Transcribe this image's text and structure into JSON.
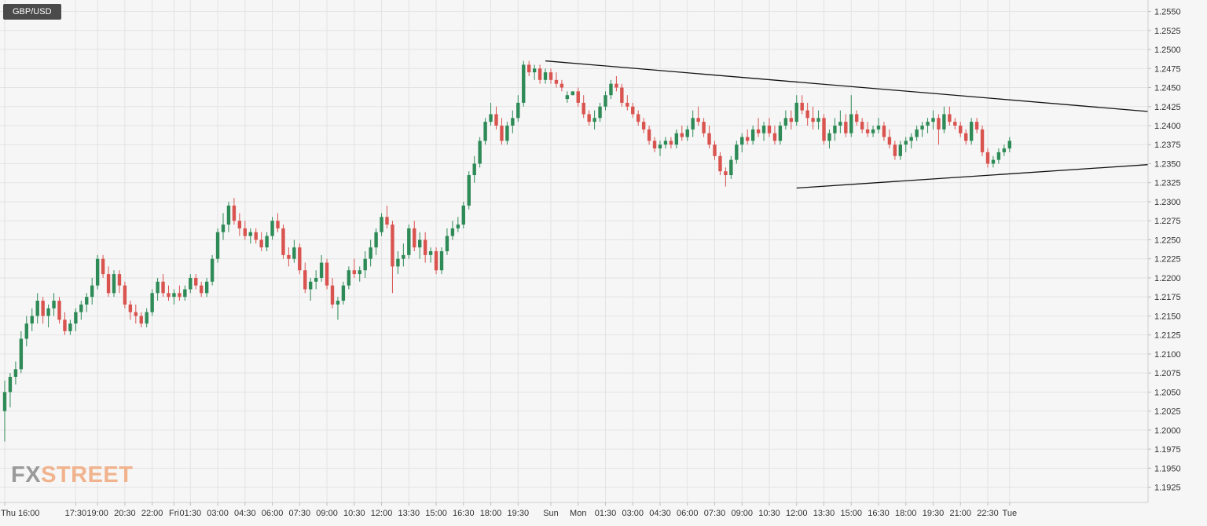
{
  "symbol": "GBP/USD",
  "logo": {
    "fx": "FX",
    "street": "STREET"
  },
  "colors": {
    "up": "#2e8b57",
    "down": "#d9534f",
    "grid": "#e3e3e3",
    "text": "#333333",
    "trendline": "#111111"
  },
  "chart_data": {
    "type": "candlestick",
    "title": "GBP/USD",
    "ylim": [
      1.1905,
      1.2565
    ],
    "grid": true,
    "y_ticks": [
      "1.2550",
      "1.2525",
      "1.2500",
      "1.2475",
      "1.2450",
      "1.2425",
      "1.2400",
      "1.2375",
      "1.2350",
      "1.2325",
      "1.2300",
      "1.2275",
      "1.2250",
      "1.2225",
      "1.2200",
      "1.2175",
      "1.2150",
      "1.2125",
      "1.2100",
      "1.2075",
      "1.2050",
      "1.2025",
      "1.2000",
      "1.1975",
      "1.1950",
      "1.1925"
    ],
    "x_ticks": [
      "Thu 16:00",
      "17:30",
      "19:00",
      "20:30",
      "22:00",
      "Fri",
      "01:30",
      "03:00",
      "04:30",
      "06:00",
      "07:30",
      "09:00",
      "10:30",
      "12:00",
      "13:30",
      "15:00",
      "16:30",
      "18:00",
      "19:30",
      "Sun",
      "Mon",
      "01:30",
      "03:00",
      "04:30",
      "06:00",
      "07:30",
      "09:00",
      "10:30",
      "12:00",
      "13:30",
      "15:00",
      "16:30",
      "18:00",
      "19:30",
      "21:00",
      "22:30",
      "Tue"
    ],
    "candles": [
      [
        "Thu 16:00",
        1.2025,
        1.2065,
        1.1985,
        1.205
      ],
      [
        "",
        1.205,
        1.2075,
        1.203,
        1.207
      ],
      [
        "",
        1.207,
        1.209,
        1.206,
        1.208
      ],
      [
        "",
        1.208,
        1.213,
        1.2075,
        1.212
      ],
      [
        "",
        1.212,
        1.215,
        1.211,
        1.214
      ],
      [
        "",
        1.214,
        1.216,
        1.213,
        1.215
      ],
      [
        "",
        1.215,
        1.218,
        1.214,
        1.217
      ],
      [
        "",
        1.217,
        1.2175,
        1.214,
        1.215
      ],
      [
        "",
        1.215,
        1.2165,
        1.2135,
        1.216
      ],
      [
        "",
        1.216,
        1.218,
        1.215,
        1.217
      ],
      [
        "",
        1.217,
        1.2175,
        1.214,
        1.2145
      ],
      [
        "",
        1.2145,
        1.2155,
        1.2125,
        1.213
      ],
      [
        "",
        1.213,
        1.2145,
        1.2125,
        1.214
      ],
      [
        "17:30",
        1.214,
        1.216,
        1.213,
        1.2155
      ],
      [
        "",
        1.2155,
        1.217,
        1.2145,
        1.2165
      ],
      [
        "",
        1.2165,
        1.218,
        1.2155,
        1.2175
      ],
      [
        "",
        1.2175,
        1.22,
        1.2165,
        1.219
      ],
      [
        "19:00",
        1.219,
        1.223,
        1.2185,
        1.2225
      ],
      [
        "",
        1.2225,
        1.223,
        1.22,
        1.2205
      ],
      [
        "",
        1.2205,
        1.2215,
        1.2175,
        1.218
      ],
      [
        "",
        1.218,
        1.221,
        1.2175,
        1.2205
      ],
      [
        "",
        1.2205,
        1.221,
        1.218,
        1.219
      ],
      [
        "20:30",
        1.219,
        1.2195,
        1.216,
        1.2165
      ],
      [
        "",
        1.2165,
        1.217,
        1.2145,
        1.2155
      ],
      [
        "",
        1.2155,
        1.2165,
        1.214,
        1.215
      ],
      [
        "",
        1.215,
        1.2155,
        1.2135,
        1.214
      ],
      [
        "",
        1.214,
        1.216,
        1.2135,
        1.2155
      ],
      [
        "22:00",
        1.2155,
        1.2185,
        1.215,
        1.218
      ],
      [
        "",
        1.218,
        1.22,
        1.217,
        1.2195
      ],
      [
        "",
        1.2195,
        1.2205,
        1.2175,
        1.218
      ],
      [
        "",
        1.218,
        1.219,
        1.217,
        1.2175
      ],
      [
        "Fri",
        1.2175,
        1.2185,
        1.2165,
        1.218
      ],
      [
        "",
        1.218,
        1.219,
        1.217,
        1.2175
      ],
      [
        "",
        1.2175,
        1.219,
        1.217,
        1.2185
      ],
      [
        "01:30",
        1.2185,
        1.2205,
        1.218,
        1.22
      ],
      [
        "",
        1.22,
        1.2205,
        1.2185,
        1.219
      ],
      [
        "",
        1.219,
        1.2195,
        1.2175,
        1.218
      ],
      [
        "",
        1.218,
        1.22,
        1.2175,
        1.2195
      ],
      [
        "",
        1.2195,
        1.223,
        1.219,
        1.2225
      ],
      [
        "03:00",
        1.2225,
        1.2265,
        1.222,
        1.226
      ],
      [
        "",
        1.226,
        1.2285,
        1.225,
        1.227
      ],
      [
        "",
        1.227,
        1.23,
        1.226,
        1.2295
      ],
      [
        "",
        1.2295,
        1.2305,
        1.227,
        1.2275
      ],
      [
        "",
        1.2275,
        1.2285,
        1.2255,
        1.2265
      ],
      [
        "04:30",
        1.2265,
        1.2275,
        1.225,
        1.2255
      ],
      [
        "",
        1.2255,
        1.2265,
        1.2245,
        1.226
      ],
      [
        "",
        1.226,
        1.2265,
        1.2245,
        1.225
      ],
      [
        "",
        1.225,
        1.226,
        1.2235,
        1.224
      ],
      [
        "",
        1.224,
        1.226,
        1.2235,
        1.2255
      ],
      [
        "06:00",
        1.2255,
        1.228,
        1.225,
        1.2275
      ],
      [
        "",
        1.2275,
        1.2285,
        1.226,
        1.2265
      ],
      [
        "",
        1.2265,
        1.227,
        1.2225,
        1.223
      ],
      [
        "",
        1.223,
        1.224,
        1.2215,
        1.2225
      ],
      [
        "",
        1.2225,
        1.225,
        1.222,
        1.224
      ],
      [
        "07:30",
        1.224,
        1.2245,
        1.2205,
        1.221
      ],
      [
        "",
        1.221,
        1.222,
        1.218,
        1.2185
      ],
      [
        "",
        1.2185,
        1.22,
        1.217,
        1.2195
      ],
      [
        "",
        1.2195,
        1.221,
        1.2185,
        1.22
      ],
      [
        "",
        1.22,
        1.223,
        1.2195,
        1.222
      ],
      [
        "09:00",
        1.222,
        1.2225,
        1.2185,
        1.219
      ],
      [
        "",
        1.219,
        1.22,
        1.216,
        1.2165
      ],
      [
        "",
        1.2165,
        1.2175,
        1.2145,
        1.217
      ],
      [
        "",
        1.217,
        1.2195,
        1.2165,
        1.219
      ],
      [
        "",
        1.219,
        1.2215,
        1.2185,
        1.221
      ],
      [
        "10:30",
        1.221,
        1.2225,
        1.22,
        1.2205
      ],
      [
        "",
        1.2205,
        1.2215,
        1.2195,
        1.221
      ],
      [
        "",
        1.221,
        1.2235,
        1.22,
        1.2225
      ],
      [
        "",
        1.2225,
        1.225,
        1.2215,
        1.224
      ],
      [
        "",
        1.224,
        1.2265,
        1.223,
        1.226
      ],
      [
        "12:00",
        1.226,
        1.2285,
        1.2255,
        1.228
      ],
      [
        "",
        1.228,
        1.2295,
        1.2265,
        1.227
      ],
      [
        "",
        1.227,
        1.2275,
        1.218,
        1.2215
      ],
      [
        "",
        1.2215,
        1.2235,
        1.2205,
        1.2225
      ],
      [
        "",
        1.2225,
        1.2245,
        1.2215,
        1.223
      ],
      [
        "13:30",
        1.223,
        1.227,
        1.2225,
        1.2265
      ],
      [
        "",
        1.2265,
        1.2275,
        1.2235,
        1.224
      ],
      [
        "",
        1.224,
        1.226,
        1.2225,
        1.225
      ],
      [
        "",
        1.225,
        1.226,
        1.222,
        1.223
      ],
      [
        "",
        1.223,
        1.224,
        1.222,
        1.2235
      ],
      [
        "15:00",
        1.2235,
        1.224,
        1.2205,
        1.221
      ],
      [
        "",
        1.221,
        1.224,
        1.2205,
        1.2235
      ],
      [
        "",
        1.2235,
        1.2265,
        1.223,
        1.2255
      ],
      [
        "",
        1.2255,
        1.2275,
        1.225,
        1.2265
      ],
      [
        "",
        1.2265,
        1.228,
        1.226,
        1.227
      ],
      [
        "16:30",
        1.227,
        1.23,
        1.2265,
        1.2295
      ],
      [
        "",
        1.2295,
        1.234,
        1.229,
        1.2335
      ],
      [
        "",
        1.2335,
        1.236,
        1.2325,
        1.235
      ],
      [
        "",
        1.235,
        1.2385,
        1.2345,
        1.238
      ],
      [
        "",
        1.238,
        1.241,
        1.2375,
        1.2405
      ],
      [
        "18:00",
        1.2405,
        1.243,
        1.24,
        1.2415
      ],
      [
        "",
        1.2415,
        1.2425,
        1.2395,
        1.24
      ],
      [
        "",
        1.24,
        1.241,
        1.2375,
        1.238
      ],
      [
        "",
        1.238,
        1.2405,
        1.2375,
        1.24
      ],
      [
        "",
        1.24,
        1.242,
        1.239,
        1.241
      ],
      [
        "19:30",
        1.241,
        1.244,
        1.2405,
        1.243
      ],
      [
        "",
        1.243,
        1.2485,
        1.2425,
        1.248
      ],
      [
        "",
        1.248,
        1.2485,
        1.2465,
        1.247
      ],
      [
        "",
        1.247,
        1.248,
        1.246,
        1.2475
      ],
      [
        "",
        1.2475,
        1.248,
        1.2455,
        1.246
      ],
      [
        "",
        1.246,
        1.2475,
        1.2455,
        1.247
      ],
      [
        "Sun",
        1.247,
        1.2475,
        1.2455,
        1.246
      ],
      [
        "",
        1.246,
        1.247,
        1.245,
        1.2455
      ],
      [
        "",
        1.2455,
        1.246,
        1.2445,
        1.245
      ],
      [
        "",
        1.2435,
        1.2445,
        1.243,
        1.244
      ],
      [
        "",
        1.244,
        1.2445,
        1.244,
        1.2445
      ],
      [
        "Mon",
        1.2445,
        1.245,
        1.2425,
        1.243
      ],
      [
        "",
        1.243,
        1.244,
        1.241,
        1.2415
      ],
      [
        "",
        1.2415,
        1.242,
        1.24,
        1.2405
      ],
      [
        "",
        1.2405,
        1.242,
        1.2395,
        1.241
      ],
      [
        "",
        1.241,
        1.243,
        1.2405,
        1.2425
      ],
      [
        "01:30",
        1.2425,
        1.2445,
        1.242,
        1.244
      ],
      [
        "",
        1.244,
        1.246,
        1.2435,
        1.2455
      ],
      [
        "",
        1.2455,
        1.2465,
        1.2445,
        1.245
      ],
      [
        "",
        1.245,
        1.2455,
        1.2425,
        1.243
      ],
      [
        "",
        1.243,
        1.244,
        1.242,
        1.2425
      ],
      [
        "03:00",
        1.2425,
        1.243,
        1.241,
        1.2415
      ],
      [
        "",
        1.2415,
        1.242,
        1.24,
        1.2405
      ],
      [
        "",
        1.2405,
        1.241,
        1.239,
        1.2395
      ],
      [
        "",
        1.2395,
        1.24,
        1.2375,
        1.238
      ],
      [
        "",
        1.238,
        1.2385,
        1.2365,
        1.237
      ],
      [
        "04:30",
        1.237,
        1.238,
        1.236,
        1.2375
      ],
      [
        "",
        1.2375,
        1.2385,
        1.237,
        1.238
      ],
      [
        "",
        1.238,
        1.2385,
        1.237,
        1.2375
      ],
      [
        "",
        1.2375,
        1.2395,
        1.237,
        1.239
      ],
      [
        "",
        1.239,
        1.24,
        1.238,
        1.2385
      ],
      [
        "06:00",
        1.2385,
        1.24,
        1.238,
        1.2395
      ],
      [
        "",
        1.2395,
        1.242,
        1.2385,
        1.241
      ],
      [
        "",
        1.241,
        1.2425,
        1.24,
        1.2405
      ],
      [
        "",
        1.2405,
        1.241,
        1.2385,
        1.239
      ],
      [
        "",
        1.239,
        1.24,
        1.237,
        1.2375
      ],
      [
        "07:30",
        1.2375,
        1.238,
        1.2355,
        1.236
      ],
      [
        "",
        1.236,
        1.2365,
        1.2335,
        1.234
      ],
      [
        "",
        1.234,
        1.2345,
        1.232,
        1.2335
      ],
      [
        "",
        1.2335,
        1.236,
        1.233,
        1.2355
      ],
      [
        "",
        1.2355,
        1.238,
        1.235,
        1.2375
      ],
      [
        "09:00",
        1.2375,
        1.239,
        1.2365,
        1.2385
      ],
      [
        "",
        1.2385,
        1.2395,
        1.2375,
        1.238
      ],
      [
        "",
        1.238,
        1.24,
        1.2375,
        1.2395
      ],
      [
        "",
        1.2395,
        1.241,
        1.2385,
        1.239
      ],
      [
        "",
        1.239,
        1.2405,
        1.238,
        1.24
      ],
      [
        "10:30",
        1.24,
        1.241,
        1.2385,
        1.239
      ],
      [
        "",
        1.239,
        1.24,
        1.2375,
        1.238
      ],
      [
        "",
        1.238,
        1.2405,
        1.2375,
        1.24
      ],
      [
        "",
        1.24,
        1.242,
        1.2395,
        1.241
      ],
      [
        "",
        1.241,
        1.242,
        1.2395,
        1.2405
      ],
      [
        "12:00",
        1.2405,
        1.244,
        1.24,
        1.243
      ],
      [
        "",
        1.243,
        1.244,
        1.2415,
        1.242
      ],
      [
        "",
        1.242,
        1.243,
        1.24,
        1.241
      ],
      [
        "",
        1.241,
        1.2425,
        1.2395,
        1.2405
      ],
      [
        "",
        1.2405,
        1.242,
        1.2395,
        1.241
      ],
      [
        "13:30",
        1.241,
        1.2415,
        1.2375,
        1.238
      ],
      [
        "",
        1.238,
        1.2395,
        1.237,
        1.239
      ],
      [
        "",
        1.239,
        1.241,
        1.238,
        1.24
      ],
      [
        "",
        1.24,
        1.242,
        1.239,
        1.2405
      ],
      [
        "",
        1.2405,
        1.2415,
        1.2385,
        1.239
      ],
      [
        "15:00",
        1.239,
        1.244,
        1.2385,
        1.2415
      ],
      [
        "",
        1.2415,
        1.242,
        1.24,
        1.2405
      ],
      [
        "",
        1.2405,
        1.241,
        1.239,
        1.2395
      ],
      [
        "",
        1.2395,
        1.2405,
        1.2385,
        1.239
      ],
      [
        "",
        1.239,
        1.24,
        1.2385,
        1.2395
      ],
      [
        "16:30",
        1.2395,
        1.241,
        1.239,
        1.24
      ],
      [
        "",
        1.24,
        1.2405,
        1.238,
        1.2385
      ],
      [
        "",
        1.2385,
        1.2395,
        1.237,
        1.2375
      ],
      [
        "",
        1.2375,
        1.238,
        1.2355,
        1.236
      ],
      [
        "",
        1.236,
        1.238,
        1.2355,
        1.2375
      ],
      [
        "18:00",
        1.2375,
        1.2385,
        1.2365,
        1.238
      ],
      [
        "",
        1.238,
        1.239,
        1.237,
        1.2385
      ],
      [
        "",
        1.2385,
        1.24,
        1.238,
        1.2395
      ],
      [
        "",
        1.2395,
        1.2405,
        1.2385,
        1.24
      ],
      [
        "",
        1.24,
        1.241,
        1.239,
        1.2405
      ],
      [
        "19:30",
        1.2405,
        1.242,
        1.2395,
        1.241
      ],
      [
        "",
        1.241,
        1.2415,
        1.2375,
        1.2395
      ],
      [
        "",
        1.2395,
        1.2425,
        1.239,
        1.2415
      ],
      [
        "",
        1.2415,
        1.2425,
        1.24,
        1.2405
      ],
      [
        "",
        1.2405,
        1.241,
        1.2395,
        1.24
      ],
      [
        "21:00",
        1.24,
        1.2405,
        1.2385,
        1.239
      ],
      [
        "",
        1.239,
        1.2395,
        1.2375,
        1.238
      ],
      [
        "",
        1.238,
        1.241,
        1.2375,
        1.2405
      ],
      [
        "",
        1.2405,
        1.241,
        1.239,
        1.2395
      ],
      [
        "",
        1.2395,
        1.24,
        1.236,
        1.2365
      ],
      [
        "22:30",
        1.2365,
        1.237,
        1.2345,
        1.235
      ],
      [
        "",
        1.235,
        1.236,
        1.2345,
        1.2355
      ],
      [
        "",
        1.2355,
        1.237,
        1.235,
        1.2365
      ],
      [
        "",
        1.2365,
        1.2375,
        1.236,
        1.237
      ],
      [
        "Tue",
        1.237,
        1.2385,
        1.2365,
        1.238
      ]
    ],
    "trendlines": [
      {
        "name": "upper",
        "from": [
          99,
          1.2485
        ],
        "to": [
          212,
          1.2417
        ]
      },
      {
        "name": "lower",
        "from": [
          145,
          1.2318
        ],
        "to": [
          212,
          1.235
        ]
      }
    ]
  }
}
